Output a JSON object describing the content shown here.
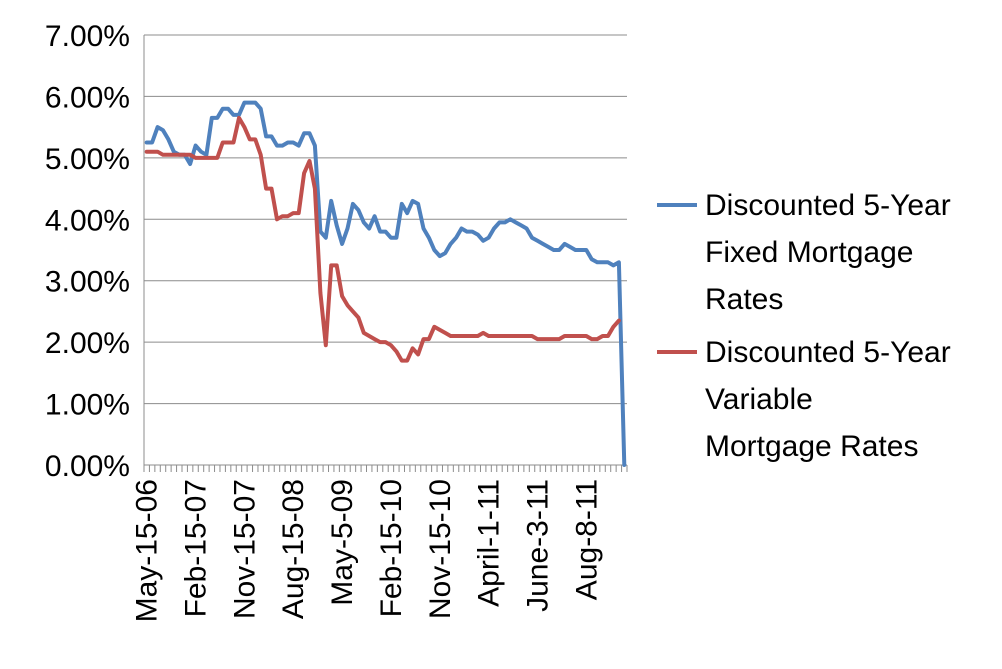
{
  "chart_data": {
    "type": "line",
    "title": "",
    "xlabel": "",
    "ylabel": "",
    "ylim": [
      0,
      0.07
    ],
    "y_ticks": [
      "0.00%",
      "1.00%",
      "2.00%",
      "3.00%",
      "4.00%",
      "5.00%",
      "6.00%",
      "7.00%"
    ],
    "x_tick_labels": [
      "May-15-06",
      "Feb-15-07",
      "Nov-15-07",
      "Aug-15-08",
      "May-5-09",
      "Feb-15-10",
      "Nov-15-10",
      "April-1-11",
      "June-3-11",
      "Aug-8-11"
    ],
    "grid": "horizontal",
    "legend_position": "right",
    "series": [
      {
        "name": "Discounted 5-Year Fixed Mortgage Rates",
        "color": "#4f81bd",
        "values": [
          0.0525,
          0.0525,
          0.055,
          0.0545,
          0.053,
          0.051,
          0.0505,
          0.0505,
          0.049,
          0.052,
          0.051,
          0.0505,
          0.0565,
          0.0565,
          0.058,
          0.058,
          0.057,
          0.057,
          0.059,
          0.059,
          0.059,
          0.058,
          0.0535,
          0.0535,
          0.052,
          0.052,
          0.0525,
          0.0525,
          0.052,
          0.054,
          0.054,
          0.052,
          0.038,
          0.037,
          0.043,
          0.039,
          0.036,
          0.0385,
          0.0425,
          0.0415,
          0.0395,
          0.0385,
          0.0405,
          0.038,
          0.038,
          0.037,
          0.037,
          0.0425,
          0.041,
          0.043,
          0.0425,
          0.0385,
          0.037,
          0.035,
          0.034,
          0.0345,
          0.036,
          0.037,
          0.0385,
          0.038,
          0.038,
          0.0375,
          0.0365,
          0.037,
          0.0385,
          0.0395,
          0.0395,
          0.04,
          0.0395,
          0.039,
          0.0385,
          0.037,
          0.0365,
          0.036,
          0.0355,
          0.035,
          0.035,
          0.036,
          0.0355,
          0.035,
          0.035,
          0.035,
          0.0335,
          0.033,
          0.033,
          0.033,
          0.0325,
          0.033,
          0.0
        ]
      },
      {
        "name": "Discounted 5-Year Variable Mortgage Rates",
        "color": "#c0504d",
        "values": [
          0.051,
          0.051,
          0.051,
          0.0505,
          0.0505,
          0.0505,
          0.0505,
          0.0505,
          0.0505,
          0.05,
          0.05,
          0.05,
          0.05,
          0.05,
          0.0525,
          0.0525,
          0.0525,
          0.0565,
          0.055,
          0.053,
          0.053,
          0.0505,
          0.045,
          0.045,
          0.04,
          0.0405,
          0.0405,
          0.041,
          0.041,
          0.0475,
          0.0495,
          0.045,
          0.028,
          0.0195,
          0.0325,
          0.0325,
          0.0275,
          0.026,
          0.025,
          0.024,
          0.0215,
          0.021,
          0.0205,
          0.02,
          0.02,
          0.0195,
          0.0185,
          0.017,
          0.017,
          0.019,
          0.018,
          0.0205,
          0.0205,
          0.0225,
          0.022,
          0.0215,
          0.021,
          0.021,
          0.021,
          0.021,
          0.021,
          0.021,
          0.0215,
          0.021,
          0.021,
          0.021,
          0.021,
          0.021,
          0.021,
          0.021,
          0.021,
          0.021,
          0.0205,
          0.0205,
          0.0205,
          0.0205,
          0.0205,
          0.021,
          0.021,
          0.021,
          0.021,
          0.021,
          0.0205,
          0.0205,
          0.021,
          0.021,
          0.0225,
          0.0235
        ]
      }
    ]
  }
}
